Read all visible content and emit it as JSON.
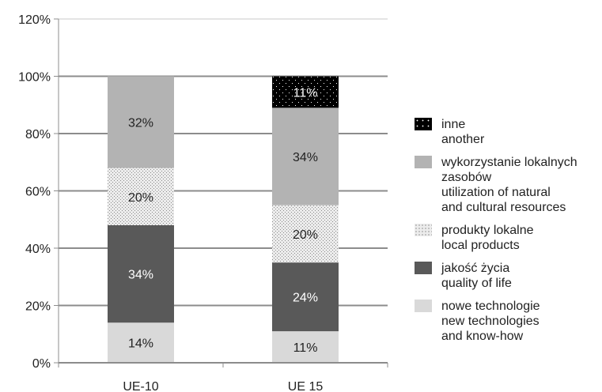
{
  "chart_data": {
    "type": "bar",
    "stacked": true,
    "categories": [
      "UE-10",
      "UE 15"
    ],
    "ylim": [
      0,
      120
    ],
    "yticks": [
      "0%",
      "20%",
      "40%",
      "60%",
      "80%",
      "100%",
      "120%"
    ],
    "grid": true,
    "legend_position": "right",
    "series": [
      {
        "key": "nowe",
        "name_lines": [
          "nowe technologie",
          "new technologies",
          "and know-how"
        ],
        "values": [
          14,
          11
        ],
        "labels": [
          "14%",
          "11%"
        ],
        "color": "#d9d9d9",
        "label_color": "#222222"
      },
      {
        "key": "jakosc",
        "name_lines": [
          "jakość życia",
          "quality of life"
        ],
        "values": [
          34,
          24
        ],
        "labels": [
          "34%",
          "24%"
        ],
        "color": "#595959",
        "label_color": "#ffffff"
      },
      {
        "key": "produkty",
        "name_lines": [
          "produkty lokalne",
          "local products"
        ],
        "values": [
          20,
          20
        ],
        "labels": [
          "20%",
          "20%"
        ],
        "color": "#e6e6e6",
        "pattern": "dots-light",
        "label_color": "#222222"
      },
      {
        "key": "wykorzystanie",
        "name_lines": [
          "wykorzystanie lokalnych",
          "zasobów",
          "utilization of natural",
          "and cultural resources"
        ],
        "values": [
          32,
          34
        ],
        "labels": [
          "32%",
          "34%"
        ],
        "color": "#b3b3b3",
        "label_color": "#222222"
      },
      {
        "key": "inne",
        "name_lines": [
          "inne",
          "another"
        ],
        "values": [
          0,
          11
        ],
        "labels": [
          "",
          "11%"
        ],
        "color": "#000000",
        "pattern": "dots-dark",
        "label_color": "#ffffff"
      }
    ]
  }
}
